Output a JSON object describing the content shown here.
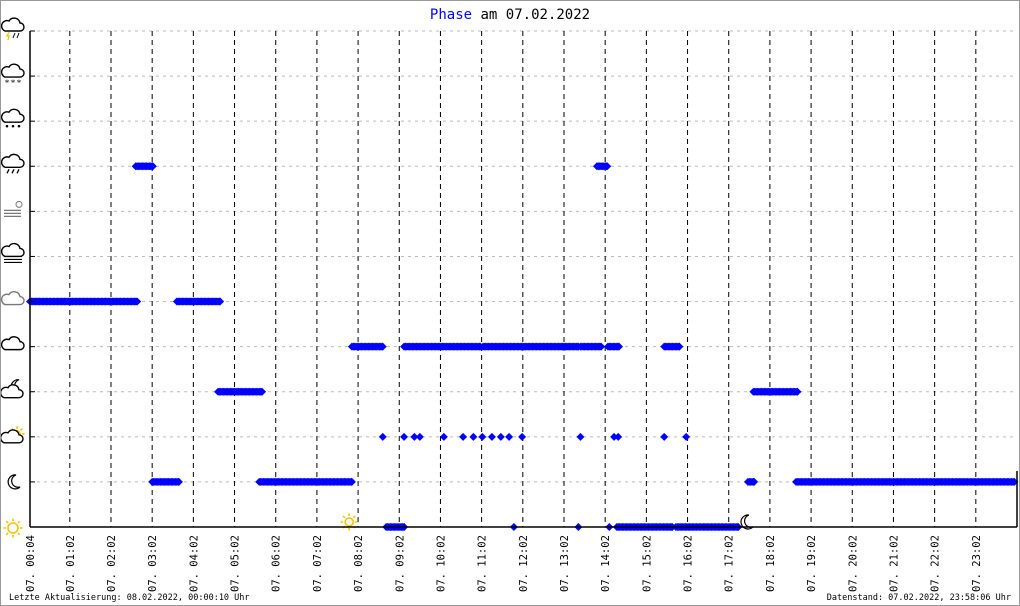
{
  "chart_data": {
    "type": "scatter",
    "title": {
      "highlight": "Phase",
      "rest": " am 07.02.2022"
    },
    "colors": {
      "title_highlight": "#0000ff",
      "points": "#0000ff",
      "grid": "#bbbbbb",
      "sun": "#f5c400"
    },
    "x_range": [
      "00:04",
      "24:02"
    ],
    "x_ticks": [
      "07. 00:04",
      "07. 01:02",
      "07. 02:02",
      "07. 03:02",
      "07. 04:02",
      "07. 05:02",
      "07. 06:02",
      "07. 07:02",
      "07. 08:02",
      "07. 09:02",
      "07. 10:02",
      "07. 11:02",
      "07. 12:02",
      "07. 13:02",
      "07. 14:02",
      "07. 15:02",
      "07. 16:02",
      "07. 17:02",
      "07. 18:02",
      "07. 19:02",
      "07. 20:02",
      "07. 21:02",
      "07. 22:02",
      "07. 23:02"
    ],
    "y_levels": [
      {
        "level": 0,
        "icon": "sun-icon"
      },
      {
        "level": 1,
        "icon": "moon-icon"
      },
      {
        "level": 2,
        "icon": "partly-cloudy-day-icon"
      },
      {
        "level": 3,
        "icon": "partly-cloudy-night-icon"
      },
      {
        "level": 4,
        "icon": "cloud-icon"
      },
      {
        "level": 5,
        "icon": "overcast-cloud-icon"
      },
      {
        "level": 6,
        "icon": "fog-icon"
      },
      {
        "level": 7,
        "icon": "haze-icon"
      },
      {
        "level": 8,
        "icon": "rain-icon"
      },
      {
        "level": 9,
        "icon": "sleet-icon"
      },
      {
        "level": 10,
        "icon": "snow-icon"
      },
      {
        "level": 11,
        "icon": "thunderstorm-icon"
      }
    ],
    "grid": true,
    "runs": [
      {
        "level": 5,
        "from": "00:04",
        "to": "02:40"
      },
      {
        "level": 8,
        "from": "02:38",
        "to": "03:03"
      },
      {
        "level": 1,
        "from": "03:02",
        "to": "03:41"
      },
      {
        "level": 5,
        "from": "03:38",
        "to": "04:41"
      },
      {
        "level": 3,
        "from": "04:38",
        "to": "05:42"
      },
      {
        "level": 1,
        "from": "05:38",
        "to": "07:53"
      },
      {
        "level": 4,
        "from": "07:53",
        "to": "08:38"
      },
      {
        "level": 0,
        "from": "08:43",
        "to": "09:09"
      },
      {
        "level": 4,
        "from": "09:09",
        "to": "11:00"
      },
      {
        "level": 4,
        "from": "11:04",
        "to": "13:23"
      },
      {
        "level": 4,
        "from": "13:26",
        "to": "13:56"
      },
      {
        "level": 8,
        "from": "13:50",
        "to": "14:05"
      },
      {
        "level": 4,
        "from": "14:06",
        "to": "14:22"
      },
      {
        "level": 0,
        "from": "14:19",
        "to": "15:40"
      },
      {
        "level": 4,
        "from": "15:28",
        "to": "15:50"
      },
      {
        "level": 0,
        "from": "15:45",
        "to": "17:16"
      },
      {
        "level": 1,
        "from": "17:30",
        "to": "17:39"
      },
      {
        "level": 3,
        "from": "17:38",
        "to": "18:42"
      },
      {
        "level": 1,
        "from": "18:40",
        "to": "23:58"
      }
    ],
    "points": [
      {
        "level": 2,
        "t": "08:38"
      },
      {
        "level": 2,
        "t": "09:09"
      },
      {
        "level": 2,
        "t": "09:24"
      },
      {
        "level": 2,
        "t": "09:32"
      },
      {
        "level": 2,
        "t": "10:07"
      },
      {
        "level": 2,
        "t": "10:35"
      },
      {
        "level": 2,
        "t": "10:50"
      },
      {
        "level": 2,
        "t": "11:03"
      },
      {
        "level": 2,
        "t": "11:17"
      },
      {
        "level": 2,
        "t": "11:30"
      },
      {
        "level": 2,
        "t": "11:42"
      },
      {
        "level": 2,
        "t": "12:01"
      },
      {
        "level": 2,
        "t": "13:26"
      },
      {
        "level": 2,
        "t": "14:15"
      },
      {
        "level": 2,
        "t": "14:21"
      },
      {
        "level": 2,
        "t": "15:28"
      },
      {
        "level": 2,
        "t": "16:00"
      },
      {
        "level": 0,
        "t": "11:49"
      },
      {
        "level": 0,
        "t": "13:23"
      },
      {
        "level": 0,
        "t": "14:08"
      }
    ],
    "sunrise": "07:49",
    "sunset": "17:27"
  },
  "footer": {
    "last_update": "Letzte Aktualisierung: 08.02.2022, 00:00:10 Uhr",
    "data_as_of": "Datenstand: 07.02.2022, 23:58:06 Uhr"
  }
}
